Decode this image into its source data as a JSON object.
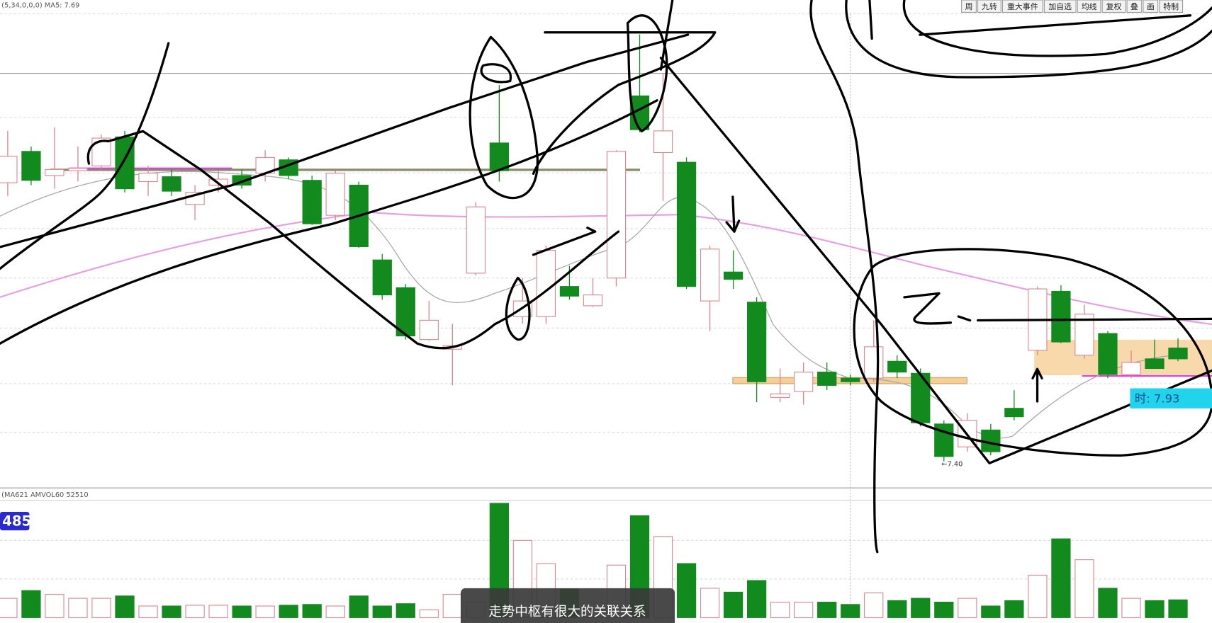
{
  "toolbar": {
    "buttons": [
      "周",
      "九转",
      "重大事件",
      "加自选",
      "均线",
      "复权",
      "叠",
      "画",
      "特制"
    ]
  },
  "header": {
    "indicator": "(5,34,0,0,0) MA5: 7.69",
    "volume_indicator": "(MA621  AMVOL60  52510",
    "volume_value": "485"
  },
  "chart_data": {
    "type": "candlestick",
    "open": [
      9.71,
      9.97,
      9.77,
      9.81,
      9.85,
      10.09,
      9.72,
      9.76,
      9.53,
      9.69,
      9.77,
      9.79,
      9.9,
      9.73,
      9.44,
      9.69,
      9.07,
      8.84,
      8.41,
      8.33,
      8.96,
      10.04,
      8.6,
      8.6,
      8.85,
      8.69,
      8.92,
      10.43,
      9.96,
      9.88,
      8.73,
      8.97,
      8.72,
      7.93,
      7.98,
      8.14,
      8.09,
      8.09,
      8.23,
      8.13,
      7.71,
      7.52,
      7.66,
      7.84,
      8.32,
      8.81,
      8.28,
      8.46,
      8.12,
      8.25,
      8.34
    ],
    "high": [
      10.14,
      10.01,
      10.17,
      10.01,
      10.11,
      10.14,
      9.85,
      9.82,
      9.69,
      9.81,
      9.82,
      9.98,
      9.92,
      9.77,
      9.81,
      9.72,
      9.12,
      8.87,
      8.73,
      8.54,
      9.55,
      10.52,
      8.92,
      9.19,
      9.02,
      8.92,
      9.98,
      10.94,
      10.62,
      9.92,
      9.19,
      9.15,
      8.76,
      8.17,
      8.22,
      8.22,
      8.12,
      8.57,
      8.28,
      8.17,
      7.74,
      7.8,
      7.71,
      7.99,
      8.85,
      8.86,
      8.7,
      8.48,
      8.32,
      8.41,
      8.42
    ],
    "low": [
      9.6,
      9.69,
      9.66,
      9.72,
      9.82,
      9.63,
      9.6,
      9.6,
      9.4,
      9.63,
      9.66,
      9.72,
      9.74,
      9.36,
      9.4,
      9.17,
      8.74,
      8.41,
      8.4,
      8.03,
      8.94,
      9.72,
      8.54,
      8.54,
      8.74,
      8.68,
      8.85,
      10.13,
      9.56,
      8.83,
      8.48,
      8.83,
      7.89,
      7.89,
      7.87,
      7.99,
      8.03,
      8.06,
      8.09,
      7.69,
      7.4,
      7.48,
      7.45,
      7.74,
      8.28,
      8.38,
      8.25,
      8.09,
      8.09,
      8.17,
      8.23
    ],
    "close": [
      9.93,
      9.73,
      9.82,
      9.83,
      10.08,
      9.66,
      9.79,
      9.64,
      9.63,
      9.74,
      9.69,
      9.92,
      9.77,
      9.37,
      9.79,
      9.18,
      8.78,
      8.44,
      8.57,
      8.36,
      9.51,
      9.81,
      8.73,
      9.15,
      8.77,
      8.78,
      9.97,
      10.15,
      10.14,
      8.85,
      9.16,
      8.91,
      8.06,
      7.96,
      8.14,
      8.03,
      8.06,
      8.35,
      8.14,
      7.72,
      7.44,
      7.74,
      7.48,
      7.77,
      8.83,
      8.39,
      8.62,
      8.12,
      8.22,
      8.17,
      8.25
    ],
    "volume": [
      25,
      35,
      30,
      25,
      25,
      28,
      15,
      15,
      16,
      16,
      15,
      15,
      16,
      17,
      15,
      28,
      15,
      18,
      10,
      30,
      20,
      148,
      100,
      70,
      37,
      20,
      68,
      132,
      105,
      70,
      38,
      33,
      48,
      20,
      20,
      20,
      17,
      32,
      22,
      25,
      20,
      25,
      15,
      22,
      55,
      102,
      75,
      38,
      25,
      22,
      23
    ],
    "ylim": [
      7.18,
      11.11
    ],
    "vlim": [
      0,
      160
    ],
    "up_color": "#ffffff",
    "up_edge": "#d9868f",
    "down_color": "#138a1e",
    "annotations": {
      "low": "←7.40",
      "price": "时: 7.93"
    }
  },
  "caption": "走势中枢有很大的关联关系"
}
